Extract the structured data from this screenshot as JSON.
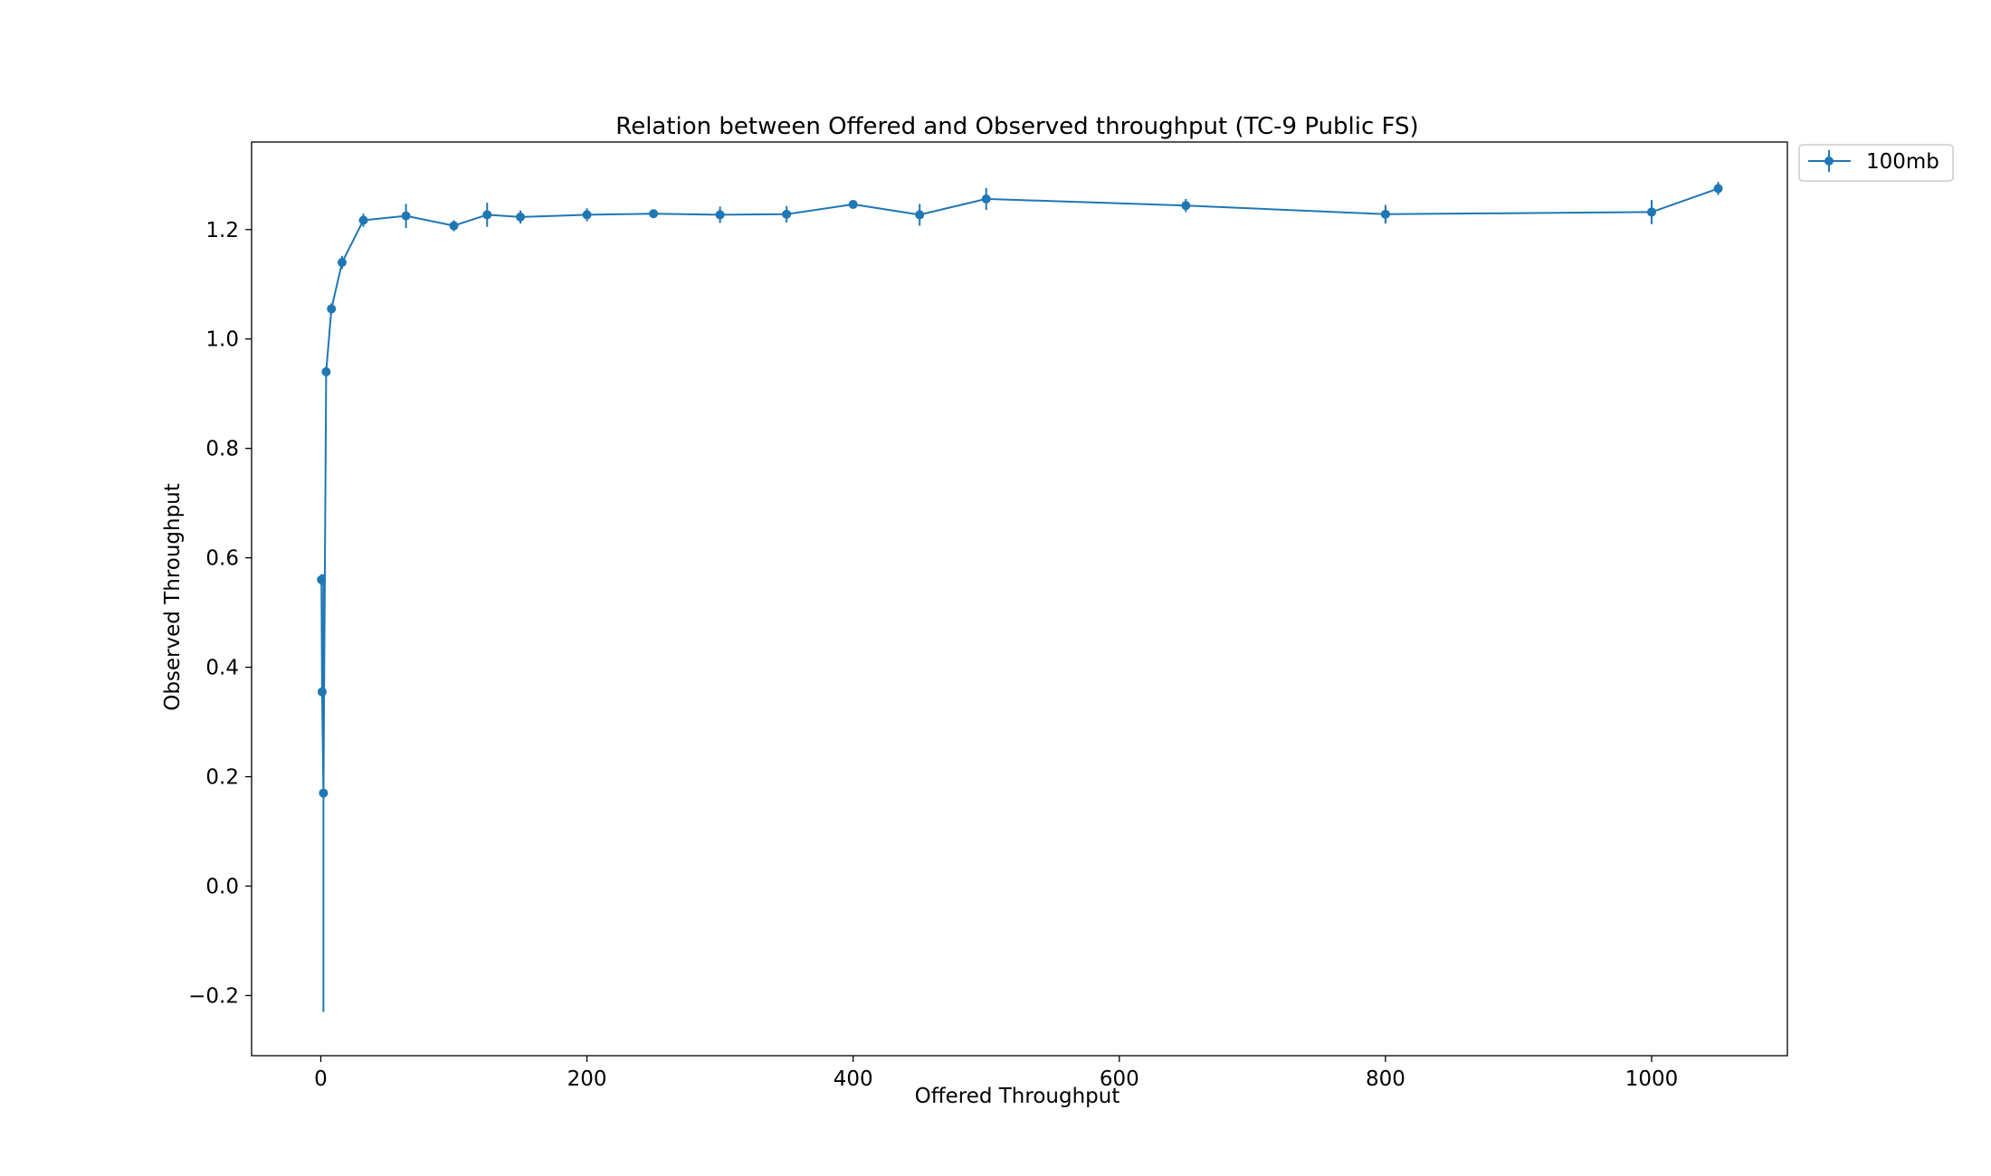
{
  "chart_data": {
    "type": "line",
    "title": "Relation between Offered and Observed throughput (TC-9  Public FS)",
    "xlabel": "Offered Throughput",
    "ylabel": "Observed Throughput",
    "xlim": [
      -52,
      1102
    ],
    "ylim": [
      -0.31,
      1.36
    ],
    "xticks": [
      0,
      200,
      400,
      600,
      800,
      1000
    ],
    "xtick_labels": [
      "0",
      "200",
      "400",
      "600",
      "800",
      "1000"
    ],
    "yticks": [
      -0.2,
      0.0,
      0.2,
      0.4,
      0.6,
      0.8,
      1.0,
      1.2
    ],
    "ytick_labels": [
      "−0.2",
      "0.0",
      "0.2",
      "0.4",
      "0.6",
      "0.8",
      "1.0",
      "1.2"
    ],
    "grid": false,
    "legend_position": "outside top-right",
    "series": [
      {
        "name": "100mb",
        "color": "#1f77b4",
        "marker": "circle",
        "error_bars": true,
        "points": [
          {
            "x": 0.5,
            "y": 0.56,
            "err": 0.01
          },
          {
            "x": 1,
            "y": 0.355,
            "err": 0.02
          },
          {
            "x": 2,
            "y": 0.17,
            "err": 0.4
          },
          {
            "x": 4,
            "y": 0.94,
            "err": 0.01
          },
          {
            "x": 8,
            "y": 1.055,
            "err": 0.01
          },
          {
            "x": 16,
            "y": 1.14,
            "err": 0.012
          },
          {
            "x": 32,
            "y": 1.217,
            "err": 0.012
          },
          {
            "x": 64,
            "y": 1.225,
            "err": 0.022
          },
          {
            "x": 100,
            "y": 1.207,
            "err": 0.01
          },
          {
            "x": 125,
            "y": 1.227,
            "err": 0.022
          },
          {
            "x": 150,
            "y": 1.223,
            "err": 0.012
          },
          {
            "x": 200,
            "y": 1.227,
            "err": 0.012
          },
          {
            "x": 250,
            "y": 1.229,
            "err": 0.006
          },
          {
            "x": 300,
            "y": 1.227,
            "err": 0.015
          },
          {
            "x": 350,
            "y": 1.228,
            "err": 0.015
          },
          {
            "x": 400,
            "y": 1.246,
            "err": 0.006
          },
          {
            "x": 450,
            "y": 1.227,
            "err": 0.02
          },
          {
            "x": 500,
            "y": 1.256,
            "err": 0.02
          },
          {
            "x": 650,
            "y": 1.244,
            "err": 0.012
          },
          {
            "x": 800,
            "y": 1.228,
            "err": 0.017
          },
          {
            "x": 1000,
            "y": 1.232,
            "err": 0.022
          },
          {
            "x": 1050,
            "y": 1.275,
            "err": 0.012
          }
        ]
      }
    ]
  }
}
